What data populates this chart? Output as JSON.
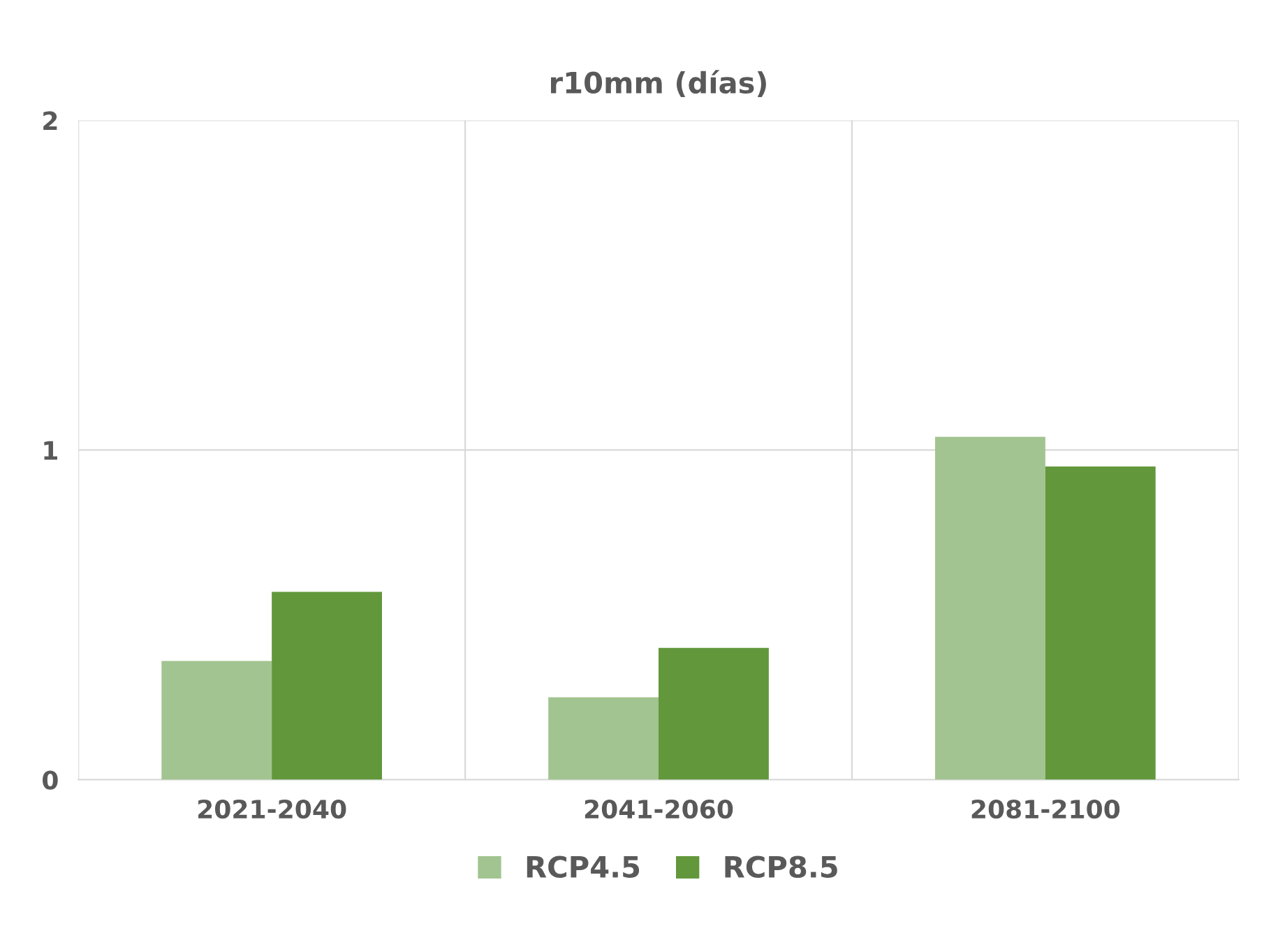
{
  "chart_data": {
    "type": "bar",
    "title": "r10mm (días)",
    "categories": [
      "2021-2040",
      "2041-2060",
      "2081-2100"
    ],
    "series": [
      {
        "name": "RCP4.5",
        "color": "#a2c490",
        "values": [
          0.36,
          0.25,
          1.04
        ]
      },
      {
        "name": "RCP8.5",
        "color": "#62973c",
        "values": [
          0.57,
          0.4,
          0.95
        ]
      }
    ],
    "ylim": [
      0,
      2
    ],
    "yticks": [
      0,
      1,
      2
    ],
    "grid": true,
    "legend": "bottom"
  }
}
